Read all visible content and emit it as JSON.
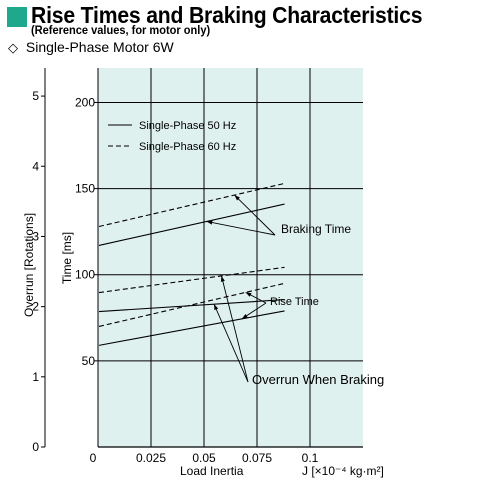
{
  "header": {
    "title": "Rise Times and Braking Characteristics",
    "note": "(Reference values, for motor only)",
    "subtitle_prefix": "◇",
    "subtitle": "Single-Phase Motor",
    "subtitle_power": "6W",
    "accent_color": "#1fa88c"
  },
  "chart_data": {
    "type": "line",
    "xlabel": "Load Inertia",
    "xunit": "J [×10⁻⁴ kg·m²]",
    "ylabel_left": "Overrun [Rotations]",
    "ylabel_right": "Time [ms]",
    "x_ticks": [
      0,
      0.025,
      0.05,
      0.075,
      0.1
    ],
    "x_tick_labels": [
      "0",
      "0.025",
      "0.05",
      "0.075",
      "0.1"
    ],
    "xlim": [
      0,
      0.125
    ],
    "time_ticks": [
      50,
      100,
      150,
      200
    ],
    "time_lim": [
      0,
      220
    ],
    "overrun_ticks": [
      0,
      1,
      2,
      3,
      4,
      5
    ],
    "overrun_lim": [
      0,
      5.4
    ],
    "grid": true,
    "plot_background": "#dff1ee",
    "legend": {
      "placement": "top-left",
      "entries": [
        {
          "label": "Single-Phase 50 Hz",
          "style": "solid"
        },
        {
          "label": "Single-Phase 60 Hz",
          "style": "dashed"
        }
      ]
    },
    "series": [
      {
        "name": "Single-Phase 50 Hz",
        "group": "Braking Time",
        "style": "solid",
        "x": [
          0,
          0.088
        ],
        "y": [
          117,
          141
        ],
        "unit": "ms"
      },
      {
        "name": "Single-Phase 60 Hz",
        "group": "Braking Time",
        "style": "dashed",
        "x": [
          0,
          0.088
        ],
        "y": [
          128,
          153
        ],
        "unit": "ms"
      },
      {
        "name": "Single-Phase 50 Hz",
        "group": "Rise Time",
        "style": "solid",
        "x": [
          0,
          0.088
        ],
        "y": [
          59,
          79
        ],
        "unit": "ms"
      },
      {
        "name": "Single-Phase 60 Hz",
        "group": "Rise Time",
        "style": "dashed",
        "x": [
          0,
          0.088
        ],
        "y": [
          70,
          95
        ],
        "unit": "ms"
      },
      {
        "name": "Single-Phase 50 Hz",
        "group": "Overrun When Braking",
        "style": "solid",
        "x": [
          0,
          0.088
        ],
        "y": [
          1.93,
          2.1
        ],
        "unit": "rotations"
      },
      {
        "name": "Single-Phase 60 Hz",
        "group": "Overrun When Braking",
        "style": "dashed",
        "x": [
          0,
          0.088
        ],
        "y": [
          2.2,
          2.56
        ],
        "unit": "rotations"
      }
    ],
    "annotations": [
      {
        "text": "Braking Time"
      },
      {
        "text": "Rise Time"
      },
      {
        "text": "Overrun When Braking"
      }
    ]
  }
}
